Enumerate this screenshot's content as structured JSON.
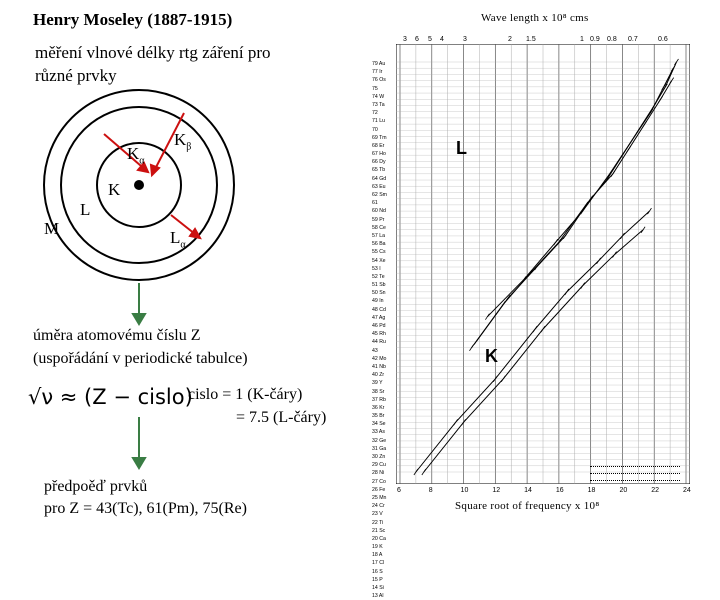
{
  "title": "Henry Moseley (1887-1915)",
  "subtitle": [
    "měření vlnové délky rtg záření pro",
    "různé prvky"
  ],
  "atom": {
    "labels": {
      "k_alpha": "Kα",
      "k_beta": "Kβ",
      "k": "K",
      "l": "L",
      "m": "M",
      "l_alpha": "Lα"
    },
    "arrow_color": "#cc1010",
    "nucleus_color": "#000000"
  },
  "proportional": [
    "úměra atomovému číslu Z",
    "(uspořádání v periodické tabulce)"
  ],
  "equation": "√ν ≈ (Z − cislo)",
  "cislo_lines": [
    "cislo = 1  (K-čáry)",
    "= 7.5 (L-čáry)"
  ],
  "prediction": [
    "předpoěď prvků",
    "pro Z = 43(Tc), 61(Pm), 75(Re)"
  ],
  "arrow_color": "#3a7d44",
  "chart_labels": {
    "L": "L",
    "K": "K"
  },
  "chart_data": {
    "type": "line",
    "xlabel": "Square root of frequency x 10⁸",
    "x2label": "Wave length x 10⁸ cms",
    "x_ticks": [
      "6",
      "8",
      "10",
      "12",
      "14",
      "16",
      "18",
      "20",
      "22",
      "24"
    ],
    "x2_ticks": [
      "3",
      "6",
      "5",
      "4",
      "3",
      "2",
      "1.5",
      "1",
      "0.9",
      "0.8",
      "0.7",
      "0.6"
    ],
    "series": [
      {
        "values": [
          [
            7.0,
            13
          ],
          [
            9.5,
            21
          ],
          [
            12.0,
            28
          ],
          [
            14.5,
            36
          ],
          [
            16.5,
            42
          ],
          [
            18.5,
            47
          ],
          [
            20.0,
            51
          ],
          [
            21.7,
            55
          ]
        ]
      },
      {
        "values": [
          [
            7.5,
            13
          ],
          [
            10.0,
            21
          ],
          [
            12.5,
            28
          ],
          [
            15.0,
            36
          ],
          [
            17.5,
            43
          ],
          [
            19.5,
            48
          ],
          [
            21.3,
            52
          ]
        ]
      },
      {
        "values": [
          [
            10.5,
            33
          ],
          [
            12.5,
            40
          ],
          [
            14.2,
            45
          ],
          [
            16.0,
            50
          ],
          [
            17.7,
            56
          ],
          [
            19.0,
            60
          ],
          [
            20.0,
            64
          ],
          [
            21.0,
            68
          ],
          [
            22.0,
            72
          ],
          [
            22.7,
            75
          ],
          [
            23.4,
            79
          ]
        ]
      },
      {
        "values": [
          [
            10.8,
            34
          ],
          [
            12.8,
            41
          ],
          [
            14.6,
            46
          ],
          [
            16.4,
            51
          ],
          [
            18.0,
            57
          ],
          [
            19.4,
            61
          ],
          [
            20.4,
            65
          ],
          [
            21.4,
            69
          ],
          [
            22.4,
            73
          ],
          [
            23.1,
            76
          ]
        ]
      },
      {
        "values": [
          [
            11.5,
            38
          ],
          [
            13.8,
            44
          ],
          [
            15.8,
            50
          ],
          [
            17.5,
            55
          ],
          [
            19.2,
            61
          ],
          [
            20.5,
            66
          ],
          [
            21.8,
            71
          ],
          [
            22.6,
            75
          ],
          [
            23.2,
            78
          ]
        ]
      }
    ]
  },
  "elements": [
    "79 Au",
    "77 Ir",
    "76 Os",
    "75",
    "74 W",
    "73 Ta",
    "72",
    "71 Lu",
    "70",
    "69 Tm",
    "68 Er",
    "67 Ho",
    "66 Dy",
    "65 Tb",
    "64 Gd",
    "63 Eu",
    "62 Sm",
    "61",
    "60 Nd",
    "59 Pr",
    "58 Ce",
    "57 La",
    "56 Ba",
    "55 Cs",
    "54 Xe",
    "53 I",
    "52 Te",
    "51 Sb",
    "50 Sn",
    "49 In",
    "48 Cd",
    "47 Ag",
    "46 Pd",
    "45 Rh",
    "44 Ru",
    "43",
    "42 Mo",
    "41 Nb",
    "40 Zr",
    "39 Y",
    "38 Sr",
    "37 Rb",
    "36 Kr",
    "35 Br",
    "34 Se",
    "33 As",
    "32 Ge",
    "31 Ga",
    "30 Zn",
    "29 Cu",
    "28 Ni",
    "27 Co",
    "26 Fe",
    "25 Mn",
    "24 Cr",
    "23 V",
    "22 Ti",
    "21 Sc",
    "20 Ca",
    "19 K",
    "18 A",
    "17 Cl",
    "16 S",
    "15 P",
    "14 Si",
    "13 Al"
  ]
}
